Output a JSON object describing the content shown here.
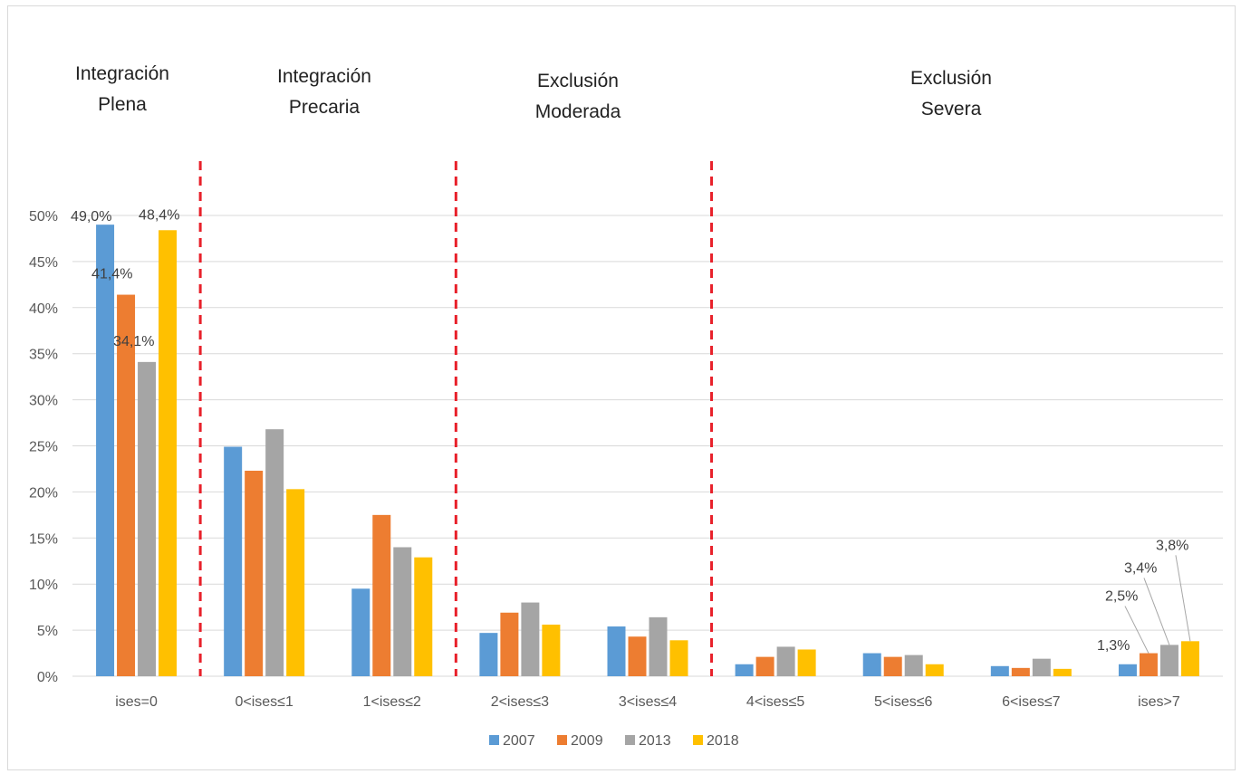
{
  "group_titles": [
    {
      "line1": "Integración",
      "line2": "Plena"
    },
    {
      "line1": "Integración",
      "line2": "Precaria"
    },
    {
      "line1": "Exclusión",
      "line2": "Moderada"
    },
    {
      "line1": "Exclusión",
      "line2": "Severa"
    }
  ],
  "colors": {
    "2007": "#5b9bd5",
    "2009": "#ed7d31",
    "2013": "#a5a5a5",
    "2018": "#ffc000",
    "divider": "#e8202a",
    "grid": "#d9d9d9"
  },
  "chart_data": {
    "type": "bar",
    "categories": [
      "ises=0",
      "0<ises≤1",
      "1<ises≤2",
      "2<ises≤3",
      "3<ises≤4",
      "4<ises≤5",
      "5<ises≤6",
      "6<ises≤7",
      "ises>7"
    ],
    "series": [
      {
        "name": "2007",
        "values": [
          49.0,
          24.9,
          9.5,
          4.7,
          5.4,
          1.3,
          2.5,
          1.1,
          1.3
        ]
      },
      {
        "name": "2009",
        "values": [
          41.4,
          22.3,
          17.5,
          6.9,
          4.3,
          2.1,
          2.1,
          0.9,
          2.5
        ]
      },
      {
        "name": "2013",
        "values": [
          34.1,
          26.8,
          14.0,
          8.0,
          6.4,
          3.2,
          2.3,
          1.9,
          3.4
        ]
      },
      {
        "name": "2018",
        "values": [
          48.4,
          20.3,
          12.9,
          5.6,
          3.9,
          2.9,
          1.3,
          0.8,
          3.8
        ]
      }
    ],
    "ylim": [
      0,
      50
    ],
    "yticks": [
      "0%",
      "5%",
      "10%",
      "15%",
      "20%",
      "25%",
      "30%",
      "35%",
      "40%",
      "45%",
      "50%"
    ],
    "data_labels": [
      {
        "category": 0,
        "series": 0,
        "text": "49,0%"
      },
      {
        "category": 0,
        "series": 1,
        "text": "41,4%"
      },
      {
        "category": 0,
        "series": 2,
        "text": "34,1%"
      },
      {
        "category": 0,
        "series": 3,
        "text": "48,4%"
      },
      {
        "category": 8,
        "series": 0,
        "text": "1,3%"
      },
      {
        "category": 8,
        "series": 1,
        "text": "2,5%"
      },
      {
        "category": 8,
        "series": 2,
        "text": "3,4%"
      },
      {
        "category": 8,
        "series": 3,
        "text": "3,8%"
      }
    ],
    "legend": {
      "position": "bottom",
      "entries": [
        "2007",
        "2009",
        "2013",
        "2018"
      ]
    },
    "grid": true
  }
}
